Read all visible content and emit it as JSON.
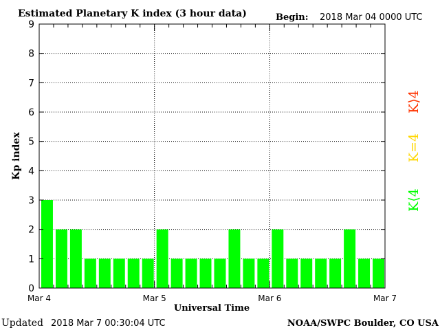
{
  "header": {
    "title": "Estimated Planetary K index (3 hour data)",
    "begin_label": "Begin:",
    "begin_value": "2018 Mar 04 0000 UTC"
  },
  "footer": {
    "updated_label": "Updated",
    "updated_value": "2018 Mar  7 00:30:04 UTC",
    "source": "NOAA/SWPC Boulder, CO USA"
  },
  "legend": {
    "low": "K⟨4",
    "equal": "K=4",
    "high": "K⟩4"
  },
  "colors": {
    "low": "#00ff00",
    "equal": "#ffd700",
    "high": "#ff3300",
    "bar": "#00ff00",
    "axis": "#000000"
  },
  "chart_data": {
    "type": "bar",
    "title": "Estimated Planetary K index (3 hour data)",
    "xlabel": "Universal Time",
    "ylabel": "Kp index",
    "ylim": [
      0,
      9
    ],
    "yticks": [
      "0",
      "1",
      "2",
      "3",
      "4",
      "5",
      "6",
      "7",
      "8",
      "9"
    ],
    "xticks": [
      "Mar 4",
      "Mar 5",
      "Mar 6",
      "Mar 7"
    ],
    "bins_per_day": 8,
    "values": [
      3,
      2,
      2,
      1,
      1,
      1,
      1,
      1,
      2,
      1,
      1,
      1,
      1,
      2,
      1,
      1,
      2,
      1,
      1,
      1,
      1,
      2,
      1,
      1
    ],
    "grid": true
  }
}
